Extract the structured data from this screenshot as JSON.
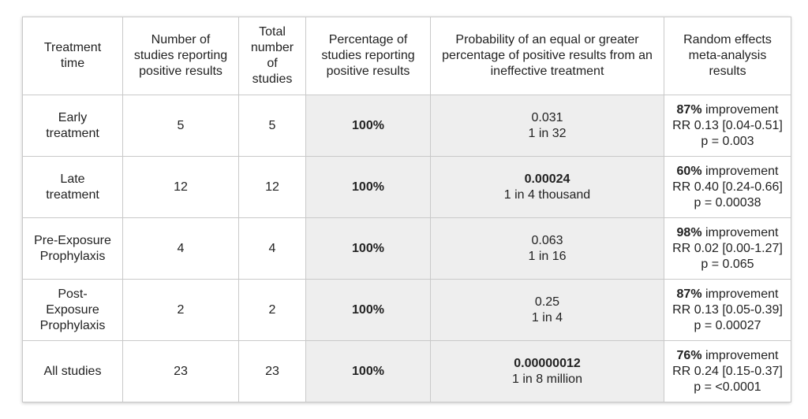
{
  "headers": [
    "Treatment time",
    "Number of studies reporting positive results",
    "Total number of studies",
    "Percentage of studies reporting positive results",
    "Probability of an equal or greater percentage of positive results from an ineffective treatment",
    "Random effects meta-analysis results"
  ],
  "rows": [
    {
      "treatment": "Early treatment",
      "positive": "5",
      "total": "5",
      "percentage": "100%",
      "probability": "0.031",
      "probability_bold": false,
      "odds": "1 in 32",
      "improvement_pct": "87%",
      "improvement_word": " improvement",
      "rr": "RR 0.13 [0.04-0.51]",
      "p": "p = 0.003"
    },
    {
      "treatment": "Late treatment",
      "positive": "12",
      "total": "12",
      "percentage": "100%",
      "probability": "0.00024",
      "probability_bold": true,
      "odds": "1 in 4 thousand",
      "improvement_pct": "60%",
      "improvement_word": " improvement",
      "rr": "RR 0.40 [0.24-0.66]",
      "p": "p = 0.00038"
    },
    {
      "treatment": "Pre-Exposure Prophylaxis",
      "positive": "4",
      "total": "4",
      "percentage": "100%",
      "probability": "0.063",
      "probability_bold": false,
      "odds": "1 in 16",
      "improvement_pct": "98%",
      "improvement_word": " improvement",
      "rr": "RR 0.02 [0.00-1.27]",
      "p": "p = 0.065"
    },
    {
      "treatment": "Post-Exposure Prophylaxis",
      "positive": "2",
      "total": "2",
      "percentage": "100%",
      "probability": "0.25",
      "probability_bold": false,
      "odds": "1 in 4",
      "improvement_pct": "87%",
      "improvement_word": " improvement",
      "rr": "RR 0.13 [0.05-0.39]",
      "p": "p = 0.00027"
    },
    {
      "treatment": "All studies",
      "positive": "23",
      "total": "23",
      "percentage": "100%",
      "probability": "0.00000012",
      "probability_bold": true,
      "odds": "1 in 8 million",
      "improvement_pct": "76%",
      "improvement_word": " improvement",
      "rr": "RR 0.24 [0.15-0.37]",
      "p": "p = <0.0001"
    }
  ],
  "colors": {
    "shade": "#eeeeee",
    "border": "#c9c9c9",
    "text": "#222222"
  }
}
